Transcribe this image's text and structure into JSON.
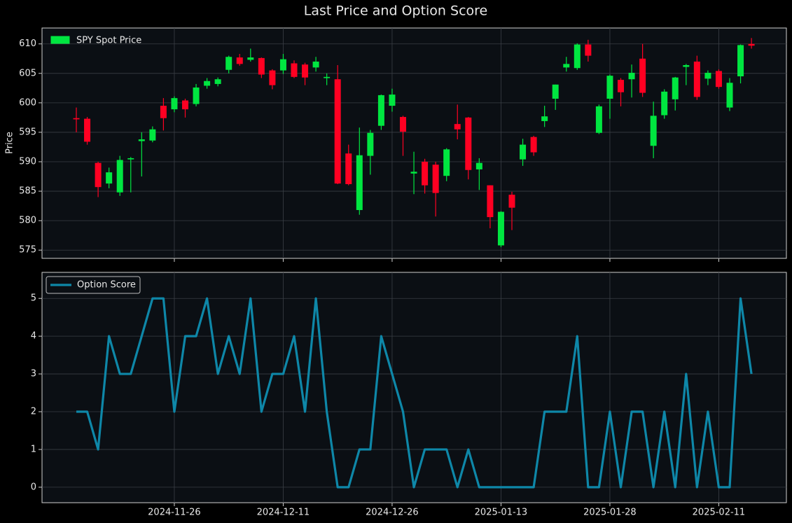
{
  "chart_data": [
    {
      "type": "candlestick",
      "title": "Last Price and Option Score",
      "ylabel": "Price",
      "series": [
        {
          "name": "SPY Spot Price",
          "color": "#00e640"
        }
      ],
      "up_color": "#00e640",
      "down_color": "#ff0022",
      "open": [
        597.4,
        597.3,
        589.8,
        586.3,
        584.8,
        590.4,
        593.5,
        593.6,
        599.5,
        598.9,
        600.4,
        599.8,
        602.9,
        603.2,
        605.6,
        607.7,
        607.3,
        607.6,
        605.5,
        605.5,
        606.7,
        606.5,
        606,
        604.2,
        604,
        591.4,
        581.8,
        591,
        596.1,
        599.5,
        597.6,
        588,
        590,
        589.5,
        587.6,
        596.4,
        597.5,
        588.7,
        586,
        575.8,
        584.4,
        590.4,
        594.2,
        596.9,
        600.7,
        606,
        605.9,
        609.9,
        594.9,
        600.7,
        603.9,
        604,
        607.5,
        592.7,
        597.9,
        600.6,
        606.1,
        607,
        604.1,
        605.4,
        599.2,
        604.5,
        610
      ],
      "high": [
        599.2,
        597.6,
        590,
        589,
        591,
        590.8,
        595,
        596,
        600.8,
        601.1,
        600.7,
        603.2,
        604.2,
        604.3,
        608,
        608.3,
        609.2,
        607.7,
        605.7,
        608.3,
        607.2,
        606.8,
        607.8,
        605,
        606.4,
        592.9,
        595.8,
        595.4,
        601.4,
        602.4,
        597.8,
        591.7,
        590.5,
        590,
        592.3,
        599.7,
        597.6,
        590.6,
        586,
        581.6,
        584.9,
        593.9,
        594.4,
        599.5,
        603.1,
        607.8,
        610.1,
        610.7,
        599.7,
        604.8,
        604.2,
        606.5,
        610,
        600.2,
        602.3,
        604.4,
        606.6,
        608,
        605.5,
        605.7,
        604.2,
        609.9,
        611
      ],
      "low": [
        595,
        592.9,
        584,
        585.5,
        584.2,
        584.8,
        587.5,
        593.3,
        595.3,
        598.4,
        597.5,
        599.4,
        602.4,
        602.8,
        605,
        606.3,
        607,
        604.2,
        602.3,
        604.9,
        604.2,
        603,
        605.3,
        603,
        586.2,
        586,
        581,
        587.8,
        595.4,
        598.5,
        591,
        584.5,
        584.6,
        580.7,
        586.7,
        593.8,
        587,
        585.2,
        578.7,
        575.5,
        578.4,
        589.3,
        591,
        595.9,
        598.8,
        605.3,
        605.6,
        607,
        594.7,
        597.3,
        599.4,
        600.9,
        601,
        590.6,
        597.3,
        598.7,
        603,
        600.5,
        603,
        602.4,
        598.6,
        603.3,
        609.2
      ],
      "close": [
        597.2,
        593.4,
        585.7,
        588.2,
        590.3,
        590.6,
        593.8,
        595.5,
        597.4,
        600.8,
        598.9,
        602.6,
        603.7,
        604,
        607.8,
        606.6,
        607.7,
        604.8,
        603,
        607.4,
        604.4,
        604.3,
        607,
        604.4,
        586.3,
        586.2,
        591.1,
        594.9,
        601.3,
        601.4,
        595.1,
        588.3,
        586,
        584.7,
        592.1,
        595.5,
        588.6,
        589.8,
        580.6,
        581.5,
        582.2,
        592.9,
        591.6,
        597.7,
        603.1,
        606.6,
        609.9,
        608,
        599.4,
        604.6,
        601.8,
        605.1,
        601.7,
        597.8,
        601.9,
        604.3,
        606.4,
        601,
        605.1,
        602.7,
        603.4,
        609.8,
        609.7
      ],
      "ylim": [
        573.6,
        612.7
      ],
      "yticks": [
        575,
        580,
        585,
        590,
        595,
        600,
        605,
        610
      ],
      "grid": true,
      "legend": "upper left"
    },
    {
      "type": "line",
      "categories": [
        null,
        null,
        null,
        null,
        null,
        null,
        null,
        null,
        null,
        "2024-11-26",
        null,
        null,
        null,
        null,
        null,
        null,
        null,
        null,
        null,
        "2024-12-11",
        null,
        null,
        null,
        null,
        null,
        null,
        null,
        null,
        null,
        "2024-12-26",
        null,
        null,
        null,
        null,
        null,
        null,
        null,
        null,
        null,
        "2025-01-13",
        null,
        null,
        null,
        null,
        null,
        null,
        null,
        null,
        null,
        "2025-01-28",
        null,
        null,
        null,
        null,
        null,
        null,
        null,
        null,
        null,
        "2025-02-11",
        null,
        null,
        null
      ],
      "series": [
        {
          "name": "Option Score",
          "color": "#0e87a8",
          "values": [
            2,
            2,
            1,
            4,
            3,
            3,
            4,
            5,
            5,
            2,
            4,
            4,
            5,
            3,
            4,
            3,
            5,
            2,
            3,
            3,
            4,
            2,
            5,
            2,
            0,
            0,
            1,
            1,
            4,
            3,
            2,
            0,
            1,
            1,
            1,
            0,
            1,
            0,
            0,
            0,
            0,
            0,
            0,
            2,
            2,
            2,
            4,
            0,
            0,
            2,
            0,
            2,
            2,
            0,
            2,
            0,
            3,
            0,
            2,
            0,
            0,
            5,
            3
          ]
        }
      ],
      "ylim": [
        -0.41,
        5.69
      ],
      "yticks": [
        0,
        1,
        2,
        3,
        4,
        5
      ],
      "grid": true,
      "legend": "upper left"
    }
  ]
}
